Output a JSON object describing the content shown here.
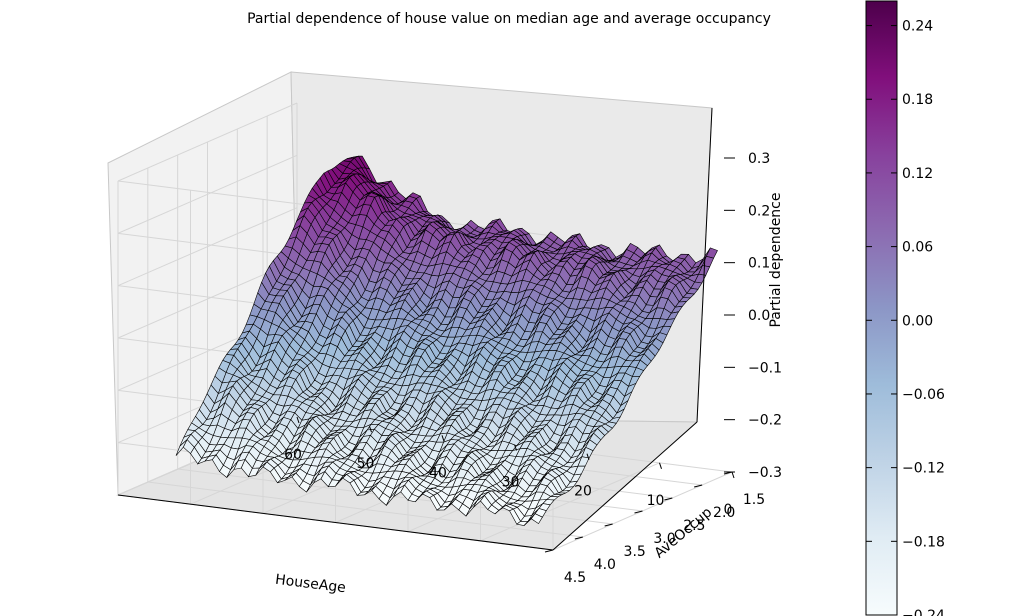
{
  "chart_data": {
    "type": "surface3d",
    "title": "Partial dependence of house value on median age and average occupancy",
    "xlabel": "HouseAge",
    "ylabel": "AveOccup",
    "zlabel": "Partial dependence",
    "x_ticks": [
      "60",
      "50",
      "40",
      "30",
      "20",
      "10",
      "0"
    ],
    "x_tick_values": [
      60,
      50,
      40,
      30,
      20,
      10,
      0
    ],
    "y_ticks": [
      "1.5",
      "2.0",
      "2.5",
      "3.0",
      "3.5",
      "4.0",
      "4.5"
    ],
    "y_tick_values": [
      1.5,
      2.0,
      2.5,
      3.0,
      3.5,
      4.0,
      4.5
    ],
    "z_ticks": [
      "0.3",
      "0.2",
      "0.1",
      "0.0",
      "−0.1",
      "−0.2",
      "−0.3"
    ],
    "z_tick_values": [
      0.3,
      0.2,
      0.1,
      0.0,
      -0.1,
      -0.2,
      -0.3
    ],
    "xlim": [
      0,
      60
    ],
    "ylim": [
      1.5,
      4.5
    ],
    "zlim": [
      -0.3,
      0.3
    ],
    "surface": {
      "house_age": [
        2,
        10,
        20,
        30,
        40,
        52
      ],
      "ave_occup": [
        1.5,
        2.0,
        2.5,
        3.0,
        3.5,
        4.0,
        4.5
      ],
      "values": [
        [
          0.11,
          0.1,
          0.1,
          0.11,
          0.11,
          0.21
        ],
        [
          0.05,
          0.07,
          0.09,
          0.1,
          0.12,
          0.21
        ],
        [
          -0.02,
          -0.01,
          0.0,
          0.01,
          0.03,
          0.14
        ],
        [
          -0.09,
          -0.08,
          -0.07,
          -0.06,
          -0.05,
          0.05
        ],
        [
          -0.16,
          -0.15,
          -0.14,
          -0.13,
          -0.12,
          -0.04
        ],
        [
          -0.21,
          -0.2,
          -0.19,
          -0.18,
          -0.17,
          -0.12
        ],
        [
          -0.25,
          -0.24,
          -0.24,
          -0.23,
          -0.23,
          -0.21
        ]
      ]
    },
    "colorbar": {
      "colormap": "BuPu",
      "ticks": [
        "0.24",
        "0.18",
        "0.12",
        "0.06",
        "0.00",
        "−0.06",
        "−0.12",
        "−0.18",
        "−0.24"
      ],
      "tick_values": [
        0.24,
        0.18,
        0.12,
        0.06,
        0.0,
        -0.06,
        -0.12,
        -0.18,
        -0.24
      ],
      "range": [
        -0.24,
        0.26
      ],
      "colors": [
        "#f7fcfd",
        "#e0ecf4",
        "#bfd3e6",
        "#9ebcda",
        "#8c96c6",
        "#8c6bb1",
        "#88419d",
        "#810f7c",
        "#4d004b"
      ]
    },
    "grid": true
  }
}
